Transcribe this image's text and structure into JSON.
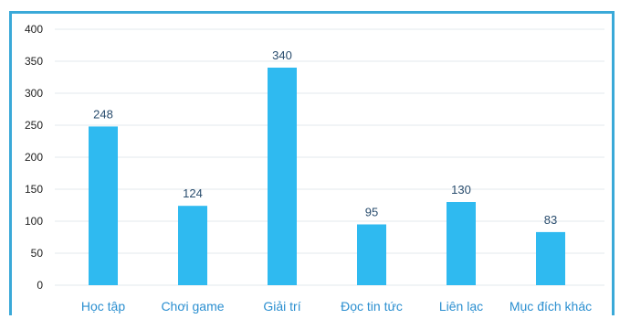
{
  "chart_data": {
    "type": "bar",
    "categories": [
      "Học tập",
      "Chơi game",
      "Giải trí",
      "Đọc tin tức",
      "Liên lạc",
      "Mục đích khác"
    ],
    "values": [
      248,
      124,
      340,
      95,
      130,
      83
    ],
    "data_labels": [
      "248",
      "124",
      "340",
      "95",
      "130",
      "83"
    ],
    "y_ticks": [
      "0",
      "50",
      "100",
      "150",
      "200",
      "250",
      "300",
      "350",
      "400"
    ],
    "ylim": [
      0,
      400
    ],
    "grid": true,
    "legend": "none",
    "colors": {
      "bar": "#2fbaf0",
      "grid": "#e3e8ec",
      "frame": "#3aa9d8",
      "category_text": "#2b8fd0",
      "data_label_text": "#2a4d6e"
    }
  }
}
